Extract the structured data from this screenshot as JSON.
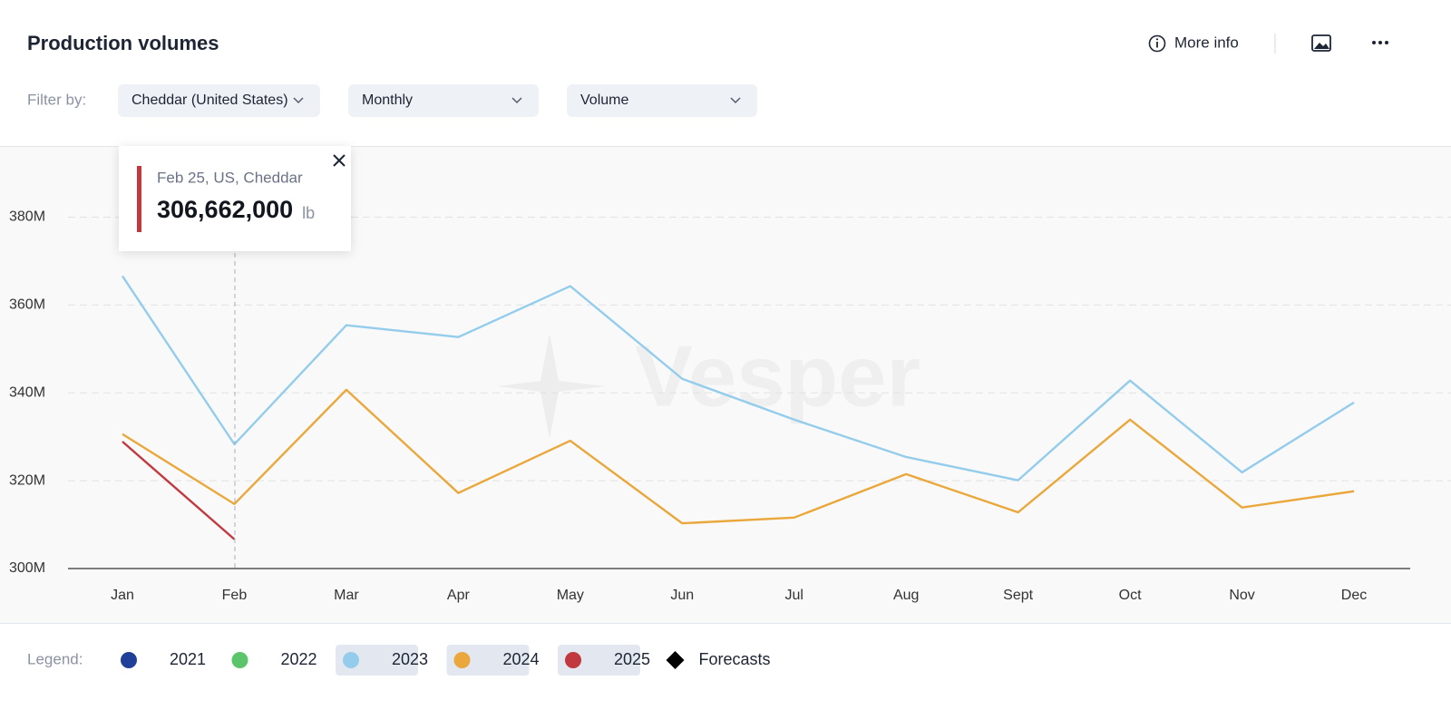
{
  "header": {
    "title": "Production volumes",
    "more_info": "More info"
  },
  "filters": {
    "label": "Filter by:",
    "options": [
      "Cheddar (United States)",
      "Monthly",
      "Volume"
    ]
  },
  "chart_data": {
    "type": "line",
    "watermark": "Vesper",
    "categories": [
      "Jan",
      "Feb",
      "Mar",
      "Apr",
      "May",
      "Jun",
      "Jul",
      "Aug",
      "Sept",
      "Oct",
      "Nov",
      "Dec"
    ],
    "series": [
      {
        "name": "2021",
        "color": "#1f3f99",
        "active": false,
        "values": [
          null,
          null,
          null,
          null,
          null,
          null,
          null,
          null,
          null,
          null,
          null,
          null
        ]
      },
      {
        "name": "2022",
        "color": "#5cc46a",
        "active": false,
        "values": [
          null,
          null,
          null,
          null,
          null,
          null,
          null,
          null,
          null,
          null,
          null,
          null
        ]
      },
      {
        "name": "2023",
        "color": "#94cdec",
        "active": true,
        "values": [
          366600000,
          328300000,
          355400000,
          352700000,
          364300000,
          343200000,
          333900000,
          325400000,
          320100000,
          342800000,
          321900000,
          337800000
        ]
      },
      {
        "name": "2024",
        "color": "#eaa83c",
        "active": true,
        "values": [
          330600000,
          314700000,
          340700000,
          317200000,
          329100000,
          310300000,
          311600000,
          321500000,
          312800000,
          333900000,
          313900000,
          317600000
        ]
      },
      {
        "name": "2025",
        "color": "#c1383e",
        "active": true,
        "values": [
          328900000,
          306662000,
          null,
          null,
          null,
          null,
          null,
          null,
          null,
          null,
          null,
          null
        ]
      }
    ],
    "ylim": [
      300000000,
      396000000
    ],
    "yticks": [
      {
        "value": 300000000,
        "label": "300M"
      },
      {
        "value": 320000000,
        "label": "320M"
      },
      {
        "value": 340000000,
        "label": "340M"
      },
      {
        "value": 360000000,
        "label": "360M"
      },
      {
        "value": 380000000,
        "label": "380M"
      }
    ],
    "grid": true,
    "forecast_legend": "Forecasts",
    "legend_label": "Legend:"
  },
  "tooltip": {
    "title": "Feb 25, US, Cheddar",
    "value_label": "306,662,000",
    "unit": "lb"
  }
}
